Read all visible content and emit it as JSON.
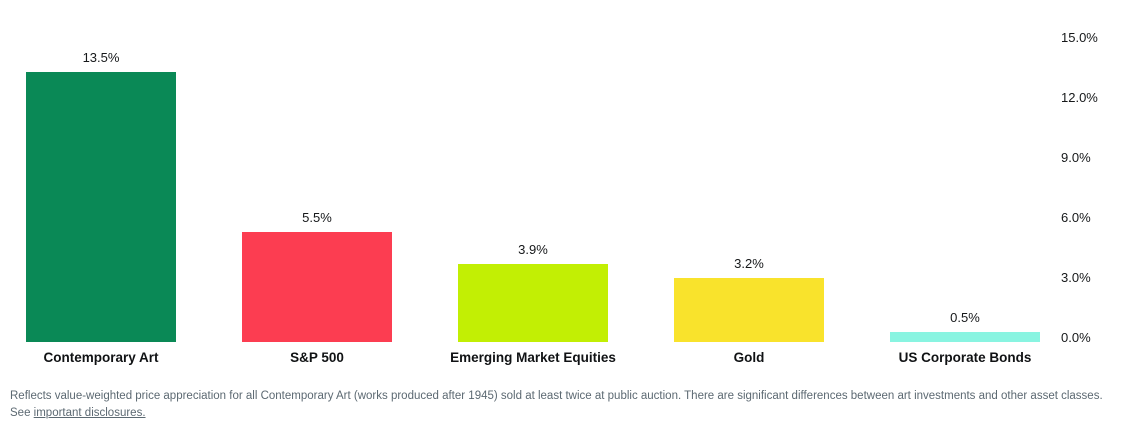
{
  "chart_data": {
    "type": "bar",
    "categories": [
      "Contemporary Art",
      "S&P 500",
      "Emerging Market Equities",
      "Gold",
      "US Corporate Bonds"
    ],
    "values": [
      13.5,
      5.5,
      3.9,
      3.2,
      0.5
    ],
    "value_labels": [
      "13.5%",
      "5.5%",
      "3.9%",
      "3.2%",
      "0.5%"
    ],
    "bar_colors": [
      "#0A8956",
      "#FC3D51",
      "#C2EF04",
      "#F9E32C",
      "#89F4E1"
    ],
    "y_ticks": [
      {
        "label": "15.0%",
        "value": 15
      },
      {
        "label": "12.0%",
        "value": 12
      },
      {
        "label": "9.0%",
        "value": 9
      },
      {
        "label": "6.0%",
        "value": 6
      },
      {
        "label": "3.0%",
        "value": 3
      },
      {
        "label": "0.0%",
        "value": 0
      }
    ],
    "ylim": [
      0,
      15
    ],
    "yaxis_side": "right",
    "grid": false,
    "title": "",
    "xlabel": "",
    "ylabel": ""
  },
  "footnote": {
    "text": "Reflects value-weighted price appreciation for all Contemporary Art (works produced after 1945) sold at least twice at public auction. There are significant differences between art investments and other asset classes. See ",
    "link_text": "important disclosures."
  }
}
